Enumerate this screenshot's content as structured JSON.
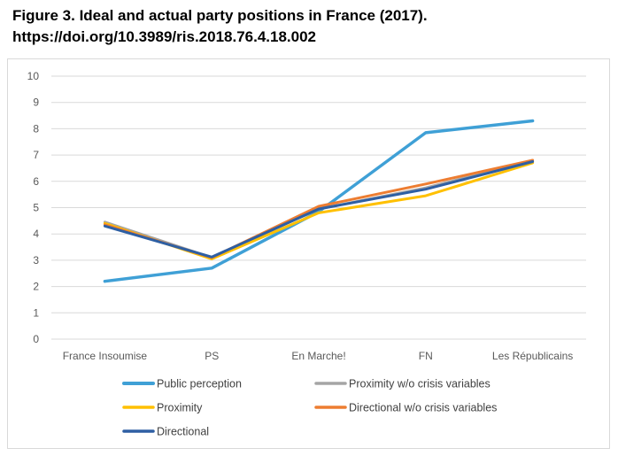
{
  "figure": {
    "title_line1": "Figure 3. Ideal and actual party positions in France (2017).",
    "title_line2": "https://doi.org/10.3989/ris.2018.76.4.18.002"
  },
  "chart_data": {
    "type": "line",
    "title": "Figure 3. Ideal and actual party positions in France (2017).",
    "xlabel": "",
    "ylabel": "",
    "ylim": [
      0,
      10
    ],
    "yticks": [
      0,
      1,
      2,
      3,
      4,
      5,
      6,
      7,
      8,
      9,
      10
    ],
    "grid": "horizontal",
    "legend_position": "bottom",
    "categories": [
      "France Insoumise",
      "PS",
      "En Marche!",
      "FN",
      "Les Républicains"
    ],
    "series": [
      {
        "name": "Public perception",
        "color": "#3fa0d6",
        "values": [
          2.2,
          2.7,
          4.85,
          7.85,
          8.3
        ]
      },
      {
        "name": "Proximity w/o crisis variables",
        "color": "#a5a5a5",
        "values": [
          4.45,
          3.1,
          4.95,
          5.75,
          6.8
        ]
      },
      {
        "name": "Proximity",
        "color": "#ffc000",
        "values": [
          4.4,
          3.05,
          4.8,
          5.45,
          6.7
        ]
      },
      {
        "name": "Directional w/o crisis variables",
        "color": "#ed7d31",
        "values": [
          4.35,
          3.1,
          5.05,
          5.9,
          6.8
        ]
      },
      {
        "name": "Directional",
        "color": "#2e5fa3",
        "values": [
          4.3,
          3.12,
          4.95,
          5.7,
          6.75
        ]
      }
    ]
  }
}
